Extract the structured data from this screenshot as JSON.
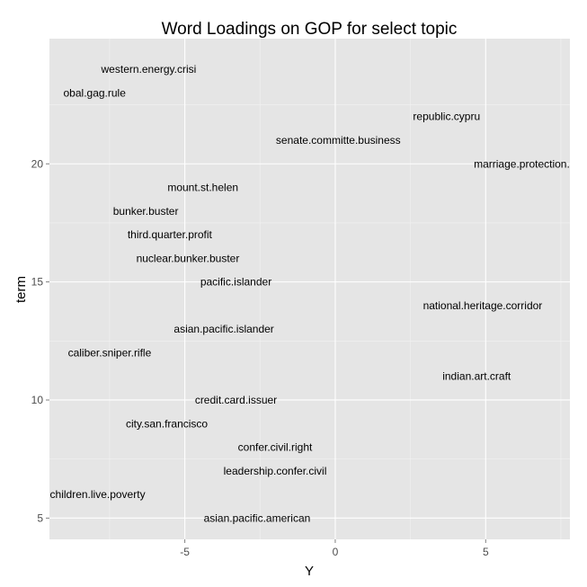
{
  "chart_data": {
    "type": "scatter",
    "title": "Word Loadings on GOP for select topic",
    "xlabel": "Y",
    "ylabel": "term",
    "xlim": [
      -9.5,
      7.8
    ],
    "ylim": [
      4.1,
      25.3
    ],
    "x_ticks": [
      -5,
      0,
      5
    ],
    "y_ticks": [
      5,
      10,
      15,
      20
    ],
    "x_tick_labels": [
      "-5",
      "0",
      "5"
    ],
    "y_tick_labels": [
      "5",
      "10",
      "15",
      "20"
    ],
    "grid": true,
    "points": [
      {
        "label": "asian.pacific.american",
        "x": -2.6,
        "y": 5
      },
      {
        "label": "children.live.poverty",
        "x": -7.9,
        "y": 6
      },
      {
        "label": "leadership.confer.civil",
        "x": -2.0,
        "y": 7
      },
      {
        "label": "confer.civil.right",
        "x": -2.0,
        "y": 8
      },
      {
        "label": "city.san.francisco",
        "x": -5.6,
        "y": 9
      },
      {
        "label": "credit.card.issuer",
        "x": -3.3,
        "y": 10
      },
      {
        "label": "indian.art.craft",
        "x": 4.7,
        "y": 11
      },
      {
        "label": "caliber.sniper.rifle",
        "x": -7.5,
        "y": 12
      },
      {
        "label": "asian.pacific.islander",
        "x": -3.7,
        "y": 13
      },
      {
        "label": "national.heritage.corridor",
        "x": 4.9,
        "y": 14
      },
      {
        "label": "pacific.islander",
        "x": -3.3,
        "y": 15
      },
      {
        "label": "nuclear.bunker.buster",
        "x": -4.9,
        "y": 16
      },
      {
        "label": "third.quarter.profit",
        "x": -5.5,
        "y": 17
      },
      {
        "label": "bunker.buster",
        "x": -6.3,
        "y": 18
      },
      {
        "label": "mount.st.helen",
        "x": -4.4,
        "y": 19
      },
      {
        "label": "marriage.protection.a",
        "x": 6.3,
        "y": 20
      },
      {
        "label": "senate.committe.business",
        "x": 0.1,
        "y": 21
      },
      {
        "label": "republic.cypru",
        "x": 3.7,
        "y": 22
      },
      {
        "label": "obal.gag.rule",
        "x": -8.0,
        "y": 23
      },
      {
        "label": "western.energy.crisi",
        "x": -6.2,
        "y": 24
      }
    ]
  }
}
